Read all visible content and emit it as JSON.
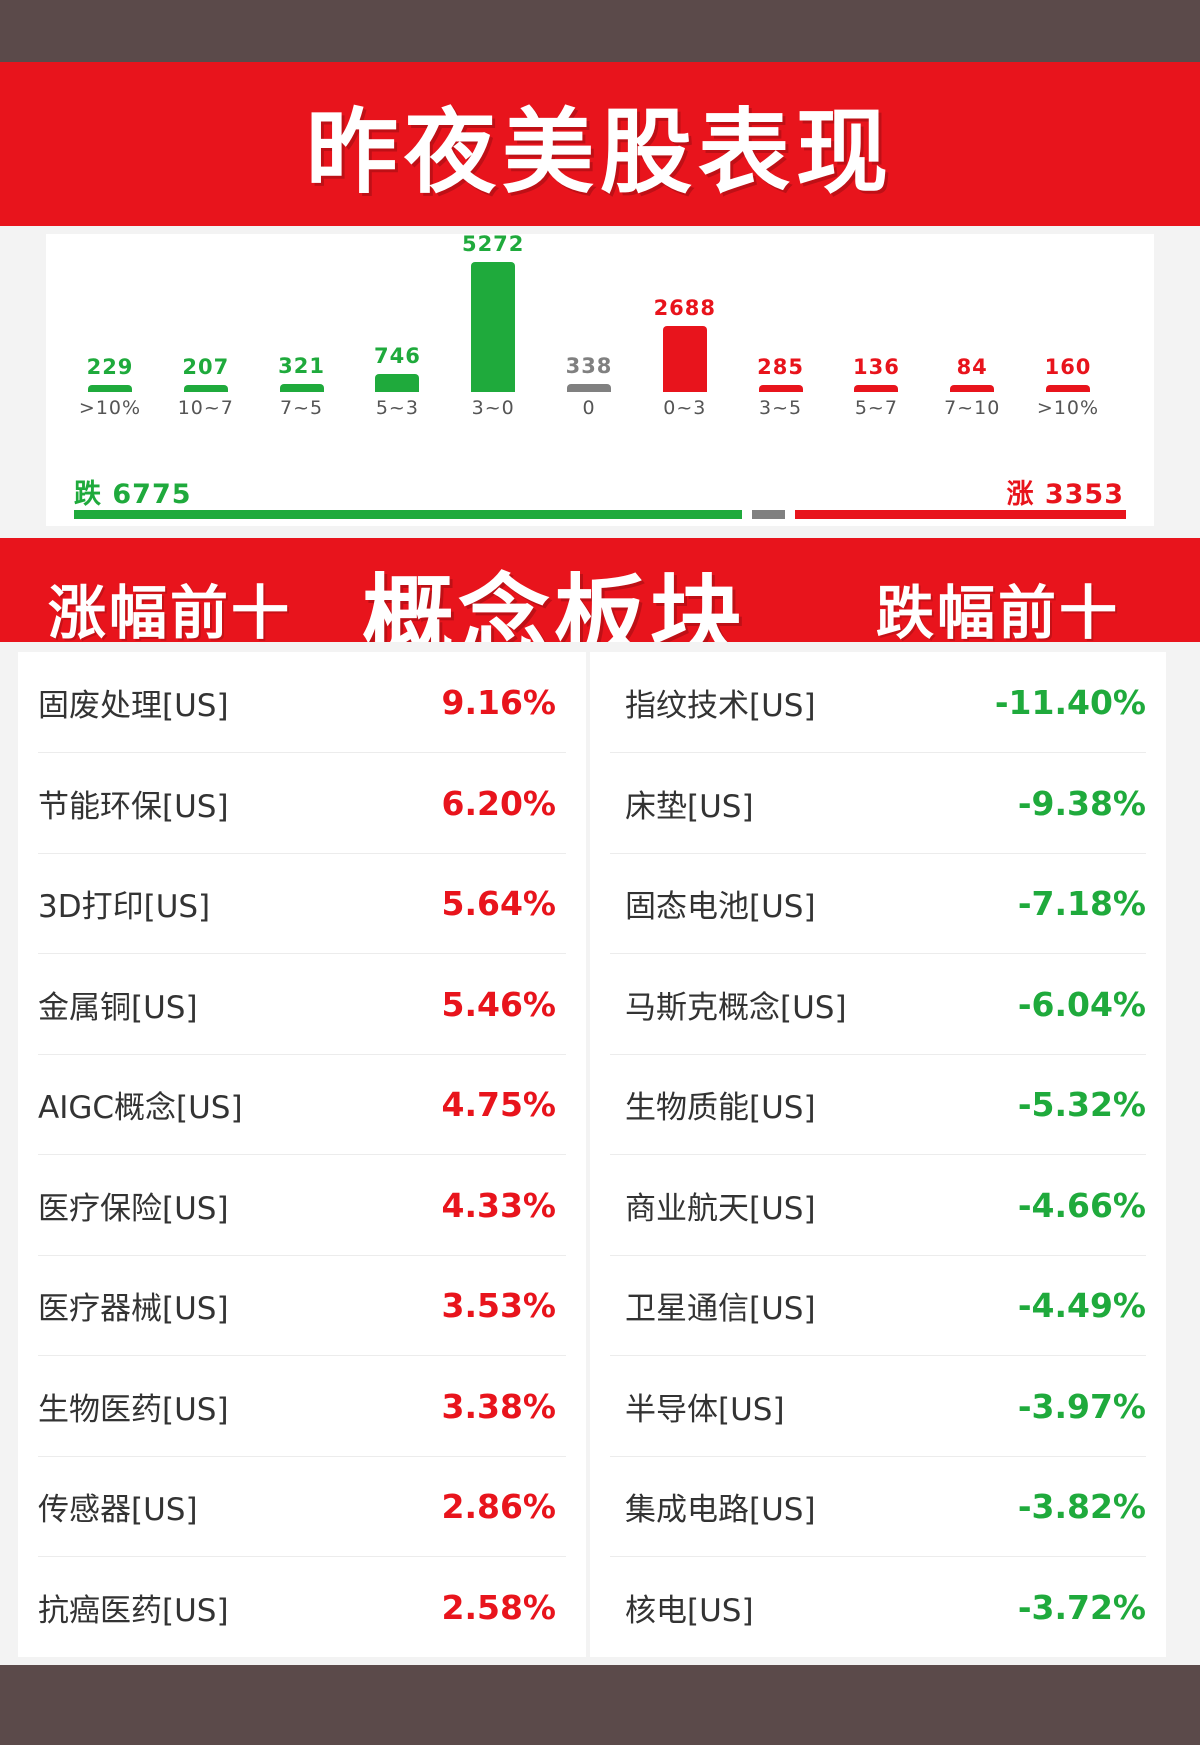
{
  "title": "昨夜美股表现",
  "colors": {
    "up": "#e8141c",
    "down": "#1faa3c",
    "flat": "#808080"
  },
  "chart_data": {
    "type": "bar",
    "categories": [
      ">10%",
      "10~7",
      "7~5",
      "5~3",
      "3~0",
      "0",
      "0~3",
      "3~5",
      "5~7",
      "7~10",
      ">10%"
    ],
    "values": [
      229,
      207,
      321,
      746,
      5272,
      338,
      2688,
      285,
      136,
      84,
      160
    ],
    "bar_colors": [
      "down",
      "down",
      "down",
      "down",
      "down",
      "flat",
      "up",
      "up",
      "up",
      "up",
      "up"
    ]
  },
  "summary": {
    "down_label": "跌 6775",
    "down_count": 6775,
    "up_label": "涨 3353",
    "up_count": 3353
  },
  "section": {
    "left_title": "涨幅前十",
    "center_title": "概念板块",
    "right_title": "跌幅前十"
  },
  "gainers": [
    {
      "name": "固废处理[US]",
      "change": "9.16%"
    },
    {
      "name": "节能环保[US]",
      "change": "6.20%"
    },
    {
      "name": "3D打印[US]",
      "change": "5.64%"
    },
    {
      "name": "金属铜[US]",
      "change": "5.46%"
    },
    {
      "name": "AIGC概念[US]",
      "change": "4.75%"
    },
    {
      "name": "医疗保险[US]",
      "change": "4.33%"
    },
    {
      "name": "医疗器械[US]",
      "change": "3.53%"
    },
    {
      "name": "生物医药[US]",
      "change": "3.38%"
    },
    {
      "name": "传感器[US]",
      "change": "2.86%"
    },
    {
      "name": "抗癌医药[US]",
      "change": "2.58%"
    }
  ],
  "losers": [
    {
      "name": "指纹技术[US]",
      "change": "-11.40%"
    },
    {
      "name": "床垫[US]",
      "change": "-9.38%"
    },
    {
      "name": "固态电池[US]",
      "change": "-7.18%"
    },
    {
      "name": "马斯克概念[US]",
      "change": "-6.04%"
    },
    {
      "name": "生物质能[US]",
      "change": "-5.32%"
    },
    {
      "name": "商业航天[US]",
      "change": "-4.66%"
    },
    {
      "name": "卫星通信[US]",
      "change": "-4.49%"
    },
    {
      "name": "半导体[US]",
      "change": "-3.97%"
    },
    {
      "name": "集成电路[US]",
      "change": "-3.82%"
    },
    {
      "name": "核电[US]",
      "change": "-3.72%"
    }
  ]
}
